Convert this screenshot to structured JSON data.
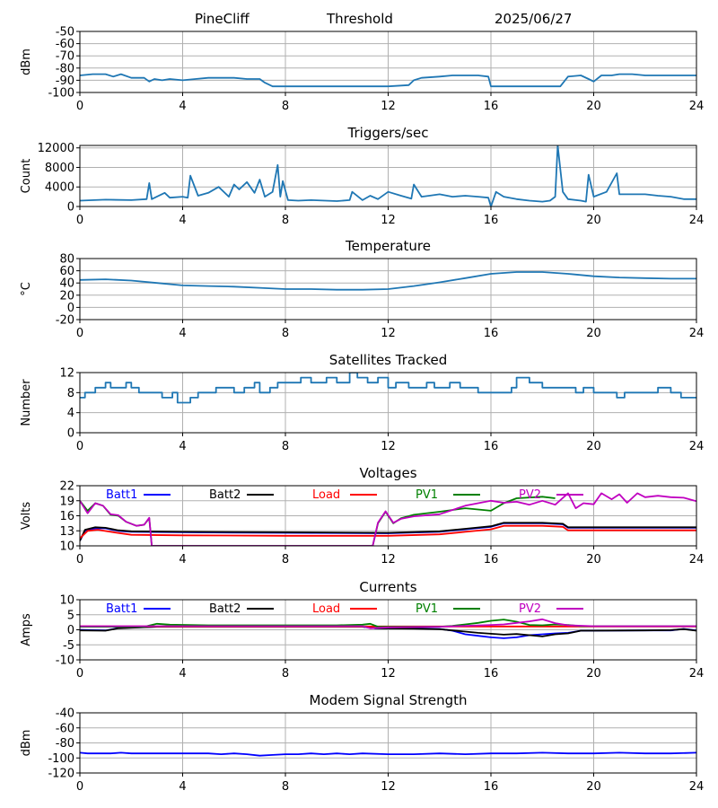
{
  "header": {
    "station": "PineCliff",
    "mode": "Threshold",
    "date": "2025/06/27"
  },
  "x_axis": {
    "range": [
      0,
      24
    ],
    "ticks": [
      0,
      4,
      8,
      12,
      16,
      20,
      24
    ]
  },
  "colors": {
    "default": "#1f77b4",
    "batt1": "#0000ff",
    "batt2": "#000000",
    "load": "#ff0000",
    "pv1": "#008000",
    "pv2": "#c000c0",
    "grid": "#b0b0b0"
  },
  "chart_data": [
    {
      "id": "signal",
      "type": "line",
      "title": "",
      "ylabel": "dBm",
      "ylim": [
        -100,
        -50
      ],
      "yticks": [
        -100,
        -90,
        -80,
        -70,
        -60,
        -50
      ],
      "series": [
        {
          "color": "#1f77b4",
          "x": [
            0,
            0.5,
            1,
            1.3,
            1.6,
            2,
            2.5,
            2.7,
            2.9,
            3.2,
            3.5,
            4,
            4.5,
            5,
            5.5,
            6,
            6.5,
            7,
            7.2,
            7.5,
            8,
            10,
            12,
            12.8,
            13,
            13.3,
            14,
            14.5,
            15,
            15.5,
            15.9,
            16,
            17,
            18,
            18.7,
            19,
            19.5,
            19.8,
            20,
            20.3,
            20.7,
            21,
            21.5,
            22,
            22.5,
            23,
            23.5,
            24
          ],
          "y": [
            -86,
            -85,
            -85,
            -87,
            -85,
            -88,
            -88,
            -91,
            -89,
            -90,
            -89,
            -90,
            -89,
            -88,
            -88,
            -88,
            -89,
            -89,
            -92,
            -95,
            -95,
            -95,
            -95,
            -94,
            -90,
            -88,
            -87,
            -86,
            -86,
            -86,
            -87,
            -95,
            -95,
            -95,
            -95,
            -87,
            -86,
            -89,
            -91,
            -86,
            -86,
            -85,
            -85,
            -86,
            -86,
            -86,
            -86,
            -86
          ]
        }
      ]
    },
    {
      "id": "triggers",
      "type": "line",
      "title": "Triggers/sec",
      "ylabel": "Count",
      "ylim": [
        0,
        12500
      ],
      "yticks": [
        0,
        4000,
        8000,
        12000
      ],
      "series": [
        {
          "color": "#1f77b4",
          "x": [
            0,
            1,
            2,
            2.6,
            2.7,
            2.8,
            3.3,
            3.5,
            4,
            4.2,
            4.3,
            4.6,
            5,
            5.4,
            5.8,
            6,
            6.2,
            6.5,
            6.8,
            7,
            7.2,
            7.5,
            7.7,
            7.8,
            7.9,
            8.1,
            8.5,
            9,
            10,
            10.5,
            10.6,
            11,
            11.3,
            11.6,
            12,
            12.5,
            12.9,
            13,
            13.3,
            13.6,
            14,
            14.5,
            15,
            15.5,
            15.9,
            16,
            16.2,
            16.5,
            17,
            17.5,
            18,
            18.3,
            18.5,
            18.6,
            18.8,
            19,
            19.5,
            19.7,
            19.8,
            20,
            20.5,
            20.9,
            21,
            21.5,
            22,
            22.5,
            23,
            23.5,
            24
          ],
          "y": [
            1200,
            1400,
            1300,
            1500,
            4800,
            1500,
            2800,
            1800,
            2000,
            1800,
            6300,
            2200,
            2800,
            4000,
            2000,
            4500,
            3500,
            5000,
            2800,
            5500,
            2000,
            3000,
            8500,
            2000,
            5200,
            1300,
            1200,
            1300,
            1100,
            1300,
            3000,
            1300,
            2200,
            1500,
            3000,
            2200,
            1600,
            4500,
            2000,
            2200,
            2500,
            2000,
            2200,
            2000,
            1800,
            0,
            3000,
            2000,
            1500,
            1200,
            1000,
            1200,
            2000,
            12500,
            3000,
            1500,
            1200,
            1000,
            6500,
            2000,
            3000,
            6800,
            2500,
            2500,
            2500,
            2200,
            2000,
            1500,
            1500
          ]
        }
      ]
    },
    {
      "id": "temperature",
      "type": "line",
      "title": "Temperature",
      "ylabel": "°C",
      "ylim": [
        -20,
        80
      ],
      "yticks": [
        -20,
        0,
        20,
        40,
        60,
        80
      ],
      "series": [
        {
          "color": "#1f77b4",
          "x": [
            0,
            1,
            2,
            3,
            4,
            5,
            6,
            7,
            8,
            9,
            10,
            11,
            12,
            13,
            14,
            15,
            16,
            17,
            18,
            19,
            20,
            21,
            22,
            23,
            24
          ],
          "y": [
            45,
            46,
            44,
            40,
            36,
            35,
            34,
            32,
            30,
            30,
            29,
            29,
            30,
            35,
            41,
            48,
            55,
            58,
            58,
            55,
            51,
            49,
            48,
            47,
            47
          ]
        }
      ]
    },
    {
      "id": "satellites",
      "type": "line",
      "title": "Satellites Tracked",
      "ylabel": "Number",
      "ylim": [
        0,
        12
      ],
      "yticks": [
        0,
        4,
        8,
        12
      ],
      "series": [
        {
          "color": "#1f77b4",
          "step": true,
          "x": [
            0,
            0.2,
            0.6,
            1,
            1.2,
            1.8,
            2,
            2.3,
            2.8,
            3.2,
            3.6,
            3.8,
            4.3,
            4.6,
            5,
            5.3,
            6,
            6.4,
            6.8,
            7,
            7.4,
            7.7,
            8.2,
            8.6,
            9,
            9.6,
            10,
            10.5,
            10.8,
            11.2,
            11.6,
            12,
            12.3,
            12.8,
            13.5,
            13.8,
            14.4,
            14.8,
            15,
            15.5,
            16,
            16.4,
            16.8,
            17,
            17.5,
            18,
            18.5,
            19,
            19.3,
            19.6,
            20,
            20.4,
            20.9,
            21.2,
            21.6,
            22,
            22.5,
            23,
            23.4,
            23.8
          ],
          "y": [
            7,
            8,
            9,
            10,
            9,
            10,
            9,
            8,
            8,
            7,
            8,
            6,
            7,
            8,
            8,
            9,
            8,
            9,
            10,
            8,
            9,
            10,
            10,
            11,
            10,
            11,
            10,
            12,
            11,
            10,
            11,
            9,
            10,
            9,
            10,
            9,
            10,
            9,
            9,
            8,
            8,
            8,
            9,
            11,
            10,
            9,
            9,
            9,
            8,
            9,
            8,
            8,
            7,
            8,
            8,
            8,
            9,
            8,
            7,
            7
          ]
        }
      ]
    },
    {
      "id": "voltages",
      "type": "line",
      "title": "Voltages",
      "ylabel": "Volts",
      "ylim": [
        10,
        22
      ],
      "yticks": [
        10,
        13,
        16,
        19,
        22
      ],
      "legend": [
        "Batt1",
        "Batt2",
        "Load",
        "PV1",
        "PV2"
      ],
      "series": [
        {
          "name": "Batt1",
          "color": "#0000ff",
          "x": [
            0,
            0.2,
            0.6,
            1,
            1.5,
            2,
            4,
            8,
            12,
            14,
            15,
            16,
            16.5,
            18,
            18.8,
            19,
            24
          ],
          "y": [
            11,
            13,
            13.5,
            13.5,
            13,
            12.8,
            12.7,
            12.6,
            12.5,
            12.8,
            13.3,
            13.8,
            14.5,
            14.5,
            14.3,
            13.6,
            13.6
          ]
        },
        {
          "name": "Batt2",
          "color": "#000000",
          "x": [
            0,
            0.2,
            0.6,
            1,
            1.5,
            2,
            4,
            8,
            12,
            14,
            15,
            16,
            16.5,
            18,
            18.8,
            19,
            24
          ],
          "y": [
            11,
            13.2,
            13.7,
            13.6,
            13.1,
            12.9,
            12.8,
            12.7,
            12.6,
            12.9,
            13.4,
            13.9,
            14.6,
            14.6,
            14.4,
            13.7,
            13.7
          ]
        },
        {
          "name": "Load",
          "color": "#ff0000",
          "x": [
            0,
            0.3,
            0.7,
            1.2,
            2,
            4,
            8,
            12,
            14,
            15,
            16,
            16.5,
            18,
            18.8,
            19,
            24
          ],
          "y": [
            11.5,
            13,
            13.2,
            12.8,
            12.2,
            12.1,
            12,
            12,
            12.3,
            12.8,
            13.3,
            14,
            14,
            13.8,
            13.1,
            13.1
          ]
        },
        {
          "name": "PV1",
          "color": "#008000",
          "x": [
            0,
            0.3,
            0.6,
            0.9,
            1.2,
            1.5,
            1.8,
            2.2,
            2.5,
            2.7,
            2.8,
            11.4,
            11.6,
            11.9,
            12.2,
            12.5,
            13,
            14,
            15,
            16,
            16.5,
            17,
            18,
            18.5
          ],
          "y": [
            19,
            17,
            18.5,
            18,
            16.2,
            16,
            14.8,
            14,
            14.2,
            15.5,
            10,
            10,
            14.5,
            16.8,
            14.5,
            15.5,
            16.2,
            16.8,
            17.5,
            17,
            18.5,
            19.5,
            19.8,
            19.5
          ]
        },
        {
          "name": "PV2",
          "color": "#c000c0",
          "x": [
            0,
            0.3,
            0.6,
            0.9,
            1.2,
            1.5,
            1.8,
            2.2,
            2.5,
            2.7,
            2.8,
            11.4,
            11.6,
            11.9,
            12.2,
            12.5,
            13,
            14,
            15,
            15.5,
            16,
            16.5,
            17,
            17.5,
            18,
            18.5,
            19,
            19.3,
            19.6,
            20,
            20.3,
            20.7,
            21,
            21.3,
            21.7,
            22,
            22.5,
            23,
            23.5,
            24
          ],
          "y": [
            19,
            16.5,
            18.5,
            18,
            16.3,
            16.1,
            14.8,
            14,
            14.2,
            15.6,
            10,
            10,
            14.6,
            16.9,
            14.6,
            15.4,
            15.9,
            16.3,
            18,
            18.5,
            19,
            18.6,
            18.8,
            18.2,
            19,
            18.2,
            20.5,
            17.5,
            18.5,
            18.3,
            20.5,
            19.3,
            20.3,
            18.6,
            20.5,
            19.7,
            20,
            19.7,
            19.6,
            18.9
          ]
        }
      ]
    },
    {
      "id": "currents",
      "type": "line",
      "title": "Currents",
      "ylabel": "Amps",
      "ylim": [
        -10,
        10
      ],
      "yticks": [
        -10,
        -5,
        0,
        5,
        10
      ],
      "legend": [
        "Batt1",
        "Batt2",
        "Load",
        "PV1",
        "PV2"
      ],
      "series": [
        {
          "name": "Batt1",
          "color": "#0000ff",
          "x": [
            0,
            1,
            1.5,
            3,
            5,
            8,
            11,
            11.5,
            13,
            14,
            14.5,
            15,
            15.5,
            16,
            16.5,
            17,
            17.5,
            18,
            18.5,
            19,
            19.5,
            20,
            22,
            23,
            23.5,
            24
          ],
          "y": [
            0,
            -0.2,
            0.6,
            1,
            1,
            1,
            1,
            0.5,
            0.5,
            0.3,
            -0.3,
            -1.5,
            -2,
            -2.5,
            -2.8,
            -2.5,
            -1.8,
            -1.5,
            -1.2,
            -1,
            -0.3,
            -0.3,
            -0.2,
            -0.2,
            0.3,
            -0.2
          ]
        },
        {
          "name": "Batt2",
          "color": "#000000",
          "x": [
            0,
            1,
            1.5,
            3,
            5,
            8,
            11,
            11.5,
            13,
            14,
            14.5,
            15,
            15.5,
            16,
            16.5,
            17,
            17.5,
            18,
            18.5,
            19,
            19.5,
            20,
            22,
            23,
            23.5,
            24
          ],
          "y": [
            -0.2,
            -0.3,
            0.5,
            1,
            1,
            1,
            1,
            0.5,
            0.4,
            0.2,
            -0.2,
            -0.6,
            -1,
            -1.3,
            -1.6,
            -1.4,
            -1.8,
            -2.2,
            -1.5,
            -1.2,
            -0.3,
            -0.3,
            -0.2,
            -0.1,
            0.2,
            -0.3
          ]
        },
        {
          "name": "Load",
          "color": "#ff0000",
          "x": [
            0,
            4,
            8,
            12,
            16,
            20,
            24
          ],
          "y": [
            1.2,
            1.1,
            1.1,
            1.1,
            1.1,
            1.1,
            1.1
          ]
        },
        {
          "name": "PV1",
          "color": "#008000",
          "x": [
            0,
            2.5,
            3,
            3.5,
            5,
            8,
            10,
            11,
            11.3,
            11.6,
            13,
            14,
            14.5,
            15,
            15.5,
            16,
            16.5,
            17,
            17.5,
            18,
            18.5,
            19,
            19.5,
            20,
            24
          ],
          "y": [
            1,
            1,
            2,
            1.7,
            1.5,
            1.5,
            1.5,
            1.7,
            2,
            1,
            1,
            1,
            1.3,
            1.8,
            2.3,
            3,
            3.4,
            2.7,
            1.6,
            1.5,
            1.8,
            1.6,
            1.2,
            1.2,
            1.2
          ]
        },
        {
          "name": "PV2",
          "color": "#c000c0",
          "x": [
            0,
            4,
            8,
            11,
            11.3,
            12,
            14,
            15,
            16,
            16.5,
            17,
            17.5,
            18,
            18.5,
            19,
            20,
            24
          ],
          "y": [
            1.2,
            1.2,
            1.2,
            1.2,
            0.5,
            0.8,
            1,
            1.3,
            1.6,
            1.8,
            2.3,
            2.8,
            3.5,
            2.2,
            1.5,
            1.2,
            1.2
          ]
        }
      ]
    },
    {
      "id": "modem",
      "type": "line",
      "title": "Modem Signal Strength",
      "ylabel": "dBm",
      "ylim": [
        -120,
        -40
      ],
      "yticks": [
        -120,
        -100,
        -80,
        -60,
        -40
      ],
      "series": [
        {
          "color": "#0000ff",
          "x": [
            0,
            0.3,
            1,
            1.2,
            1.6,
            2,
            3,
            4,
            5,
            5.5,
            6,
            6.5,
            7,
            7.5,
            8,
            8.5,
            9,
            9.5,
            10,
            10.5,
            11,
            12,
            13,
            14,
            15,
            16,
            17,
            18,
            19,
            20,
            21,
            22,
            23,
            24
          ],
          "y": [
            -93,
            -94,
            -94,
            -94,
            -93,
            -94,
            -94,
            -94,
            -94,
            -95,
            -94,
            -95,
            -97,
            -96,
            -95,
            -95,
            -94,
            -95,
            -94,
            -95,
            -94,
            -95,
            -95,
            -94,
            -95,
            -94,
            -94,
            -93,
            -94,
            -94,
            -93,
            -94,
            -94,
            -93
          ]
        }
      ]
    }
  ]
}
